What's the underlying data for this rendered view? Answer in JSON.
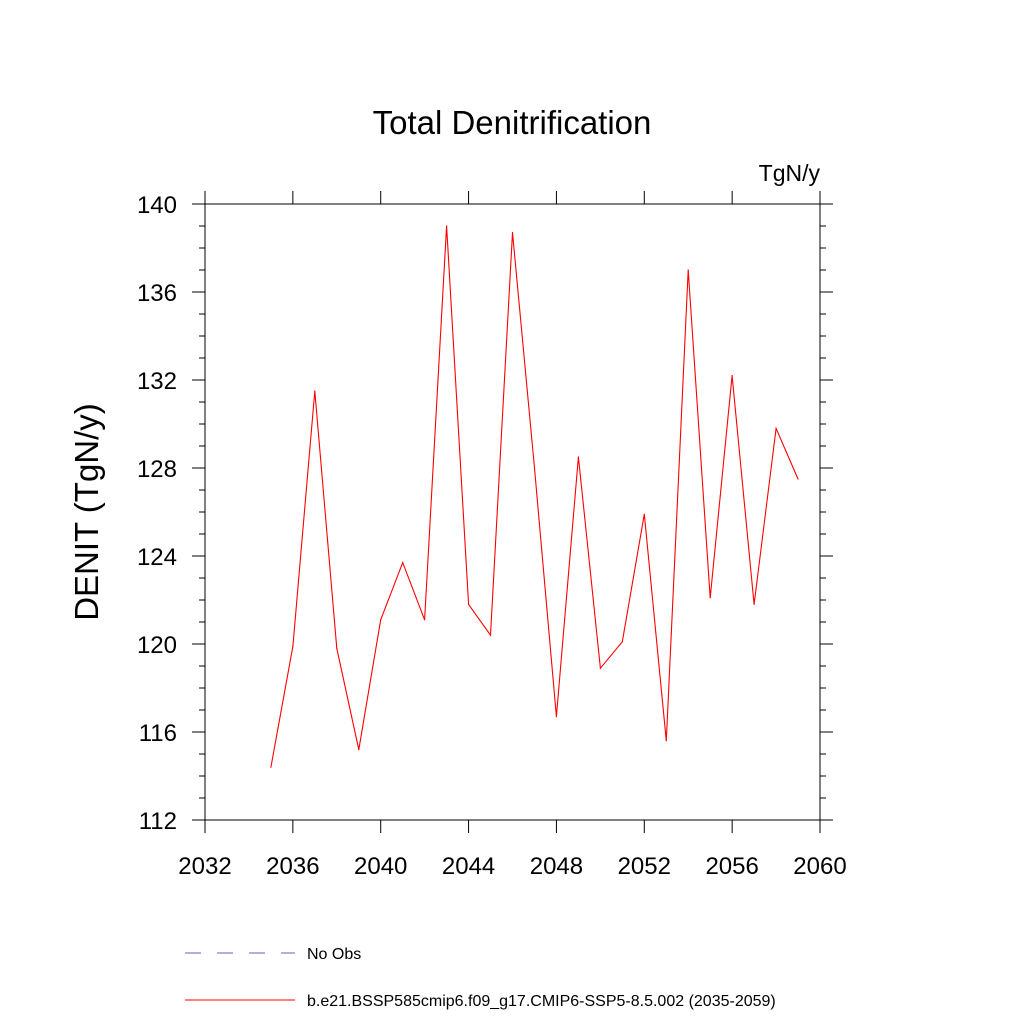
{
  "chart_data": {
    "type": "line",
    "title": "Total Denitrification",
    "units_label": "TgN/y",
    "ylabel": "DENIT  (TgN/y)",
    "xlabel": "",
    "xlim": [
      2032,
      2060
    ],
    "ylim": [
      112,
      140
    ],
    "x_ticks": [
      2032,
      2036,
      2040,
      2044,
      2048,
      2052,
      2056,
      2060
    ],
    "y_ticks": [
      112,
      116,
      120,
      124,
      128,
      132,
      136,
      140
    ],
    "grid": false,
    "legend_position": "bottom",
    "series": [
      {
        "name": "b.e21.BSSP585cmip6.f09_g17.CMIP6-SSP5-8.5.002 (2035-2059)",
        "color": "#ff0000",
        "style": "solid",
        "x": [
          2035,
          2036,
          2037,
          2038,
          2039,
          2040,
          2041,
          2042,
          2043,
          2044,
          2045,
          2046,
          2047,
          2048,
          2049,
          2050,
          2051,
          2052,
          2053,
          2054,
          2055,
          2056,
          2057,
          2058,
          2059
        ],
        "values": [
          114.4,
          119.9,
          131.5,
          119.8,
          115.2,
          121.1,
          123.7,
          121.1,
          139.0,
          121.8,
          120.4,
          138.7,
          128.0,
          116.7,
          128.5,
          118.9,
          120.1,
          125.9,
          115.6,
          137.0,
          122.1,
          132.2,
          121.8,
          129.8,
          127.5
        ]
      }
    ],
    "legend": [
      {
        "label": "No Obs",
        "color": "#6a5acd",
        "style": "dashed"
      },
      {
        "label": "b.e21.BSSP585cmip6.f09_g17.CMIP6-SSP5-8.5.002 (2035-2059)",
        "color": "#ff0000",
        "style": "solid"
      }
    ]
  }
}
